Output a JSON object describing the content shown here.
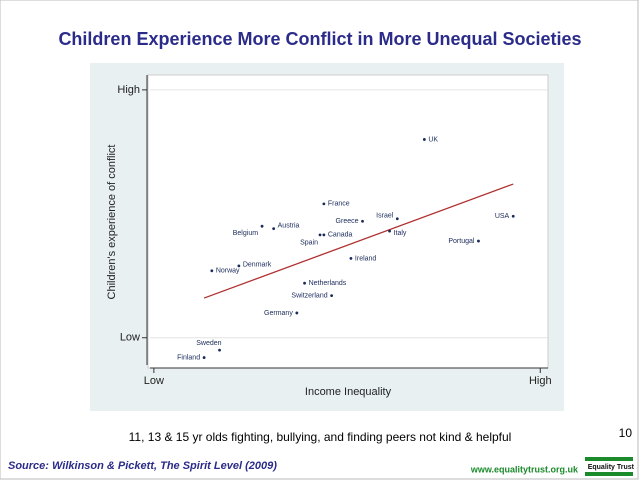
{
  "title": "Children Experience More Conflict in More Unequal Societies",
  "chart_data": {
    "type": "scatter",
    "x_label": "Income Inequality",
    "y_label": "Children's experience of conflict",
    "xlim": [
      -1,
      102
    ],
    "ylim": [
      -11,
      106
    ],
    "xticks": [
      {
        "value": 0,
        "label": "Low"
      },
      {
        "value": 100,
        "label": "High"
      }
    ],
    "yticks": [
      {
        "value": 0,
        "label": "Low"
      },
      {
        "value": 100,
        "label": "High"
      }
    ],
    "color": "#1a2a5a",
    "series": [
      {
        "labels": [
          "UK",
          "France",
          "Austria",
          "Belgium",
          "Greece",
          "Israel",
          "USA",
          "Canada",
          "Spain",
          "Italy",
          "Portugal",
          "Ireland",
          "Denmark",
          "Norway",
          "Netherlands",
          "Switzerland",
          "Germany",
          "Sweden",
          "Finland"
        ],
        "x": [
          70,
          44,
          31,
          28,
          54,
          63,
          93,
          44,
          43,
          61,
          84,
          51,
          22,
          15,
          39,
          46,
          37,
          17,
          13
        ],
        "y": [
          80,
          54,
          44,
          45,
          47,
          48,
          49,
          41.5,
          41.5,
          43,
          39,
          32,
          29,
          27,
          22,
          17,
          10,
          -5,
          -8
        ]
      }
    ],
    "trend": {
      "x": [
        13,
        93
      ],
      "y": [
        16,
        62
      ],
      "color": "#b03030"
    }
  },
  "caption": "11, 13 & 15 yr olds fighting, bullying, and finding peers not kind & helpful",
  "page_number": "10",
  "source": "Source: Wilkinson & Pickett, The Spirit Level (2009)",
  "website": "www.equalitytrust.org.uk",
  "logo": "Equality Trust"
}
